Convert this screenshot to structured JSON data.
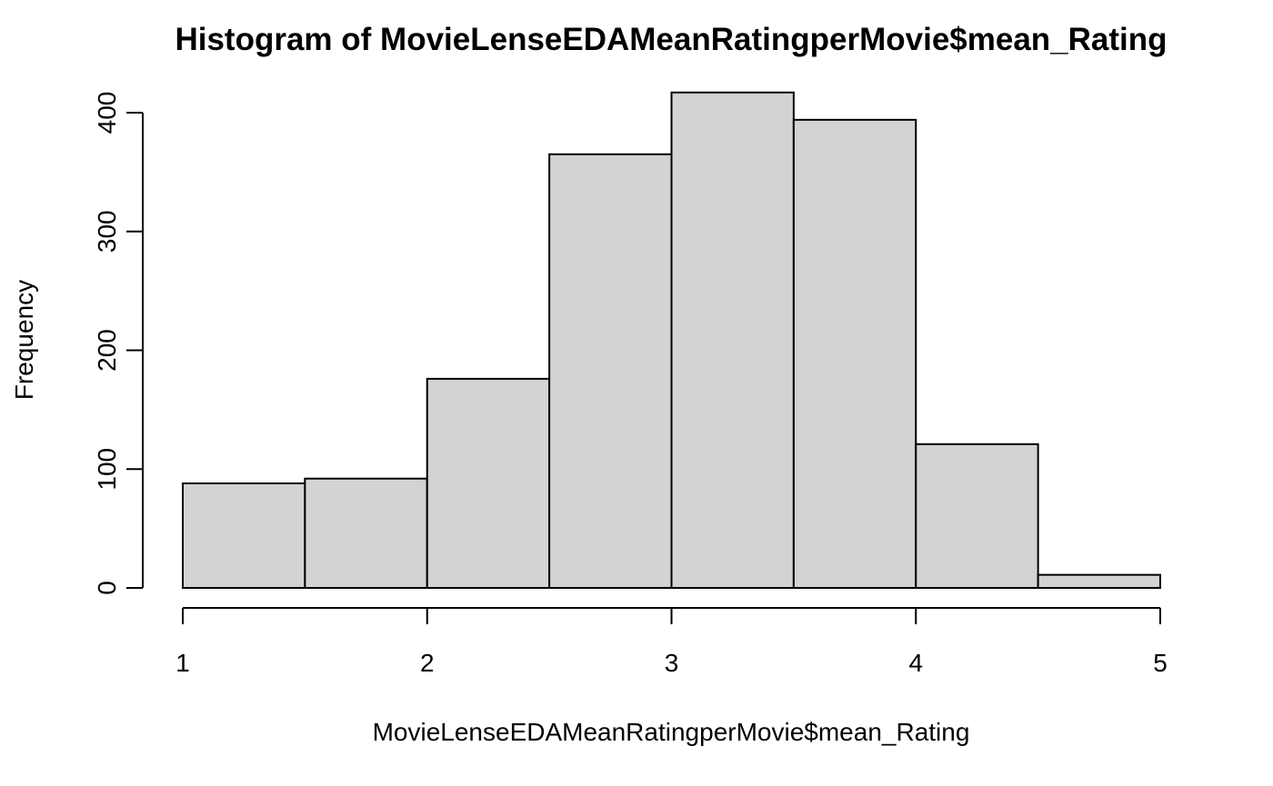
{
  "chart_data": {
    "type": "bar",
    "subtype": "histogram",
    "title": "Histogram of MovieLenseEDAMeanRatingperMovie$mean_Rating",
    "xlabel": "MovieLenseEDAMeanRatingperMovie$mean_Rating",
    "ylabel": "Frequency",
    "bins": [
      {
        "start": 1.0,
        "end": 1.5,
        "count": 88
      },
      {
        "start": 1.5,
        "end": 2.0,
        "count": 92
      },
      {
        "start": 2.0,
        "end": 2.5,
        "count": 176
      },
      {
        "start": 2.5,
        "end": 3.0,
        "count": 365
      },
      {
        "start": 3.0,
        "end": 3.5,
        "count": 417
      },
      {
        "start": 3.5,
        "end": 4.0,
        "count": 394
      },
      {
        "start": 4.0,
        "end": 4.5,
        "count": 121
      },
      {
        "start": 4.5,
        "end": 5.0,
        "count": 11
      }
    ],
    "xlim": [
      1,
      5
    ],
    "ylim": [
      0,
      400
    ],
    "x_ticks": [
      "1",
      "2",
      "3",
      "4",
      "5"
    ],
    "y_ticks": [
      "0",
      "100",
      "200",
      "300",
      "400"
    ],
    "bar_color": "#d3d3d3",
    "bar_border_color": "#000000",
    "grid": false,
    "legend": "none"
  }
}
